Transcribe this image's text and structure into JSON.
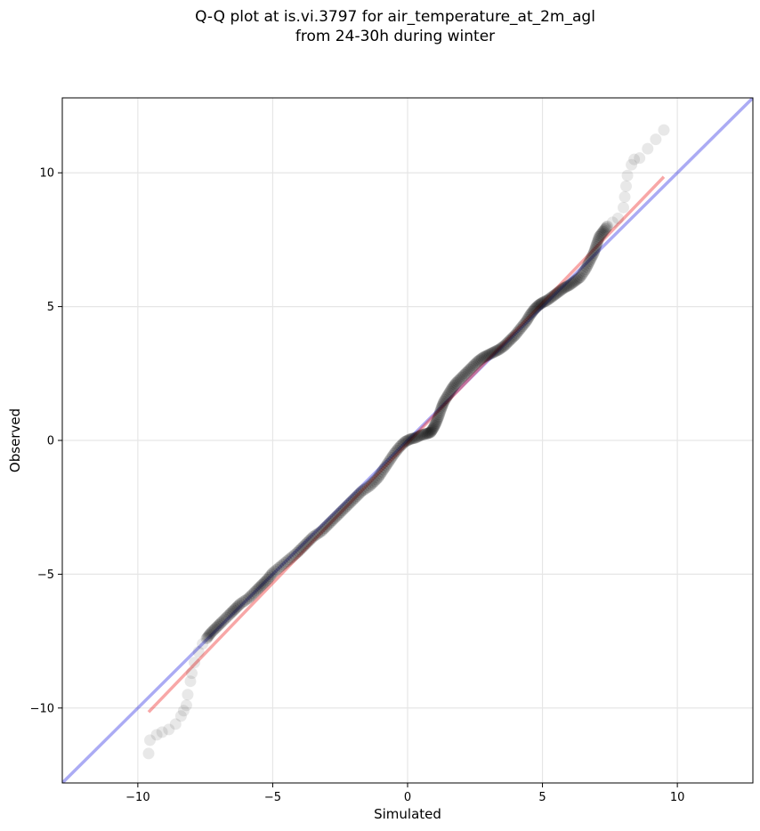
{
  "chart_data": {
    "type": "scatter",
    "title_line1": "Q-Q plot at is.vi.3797 for air_temperature_at_2m_agl",
    "title_line2": "from 24-30h during winter",
    "xlabel": "Simulated",
    "ylabel": "Observed",
    "xlim": [
      -12.8,
      12.8
    ],
    "ylim": [
      -12.8,
      12.8
    ],
    "xticks": [
      -10,
      -5,
      0,
      5,
      10
    ],
    "yticks": [
      -10,
      -5,
      0,
      5,
      10
    ],
    "grid": true,
    "reference_line": {
      "color": "#0000dd",
      "x": [
        -12.8,
        12.8
      ],
      "y": [
        -12.8,
        12.8
      ]
    },
    "fit_line": {
      "color": "#ee2222",
      "x": [
        -9.6,
        9.5
      ],
      "y": [
        -10.15,
        9.85
      ]
    },
    "point_color": "#000000",
    "quantiles": [
      [
        -9.6,
        -11.7
      ],
      [
        -9.55,
        -11.2
      ],
      [
        -9.3,
        -11.0
      ],
      [
        -9.1,
        -10.9
      ],
      [
        -8.85,
        -10.8
      ],
      [
        -8.6,
        -10.6
      ],
      [
        -8.4,
        -10.3
      ],
      [
        -8.3,
        -10.1
      ],
      [
        -8.2,
        -9.9
      ],
      [
        -8.15,
        -9.5
      ],
      [
        -8.05,
        -9.0
      ],
      [
        -8.0,
        -8.7
      ],
      [
        -7.9,
        -8.3
      ],
      [
        -7.75,
        -7.9
      ],
      [
        -7.6,
        -7.6
      ],
      [
        -7.45,
        -7.4
      ],
      [
        -7.3,
        -7.2
      ],
      [
        -7.1,
        -7.0
      ],
      [
        -6.9,
        -6.8
      ],
      [
        -6.6,
        -6.5
      ],
      [
        -6.4,
        -6.3
      ],
      [
        -6.2,
        -6.1
      ],
      [
        -5.9,
        -5.9
      ],
      [
        -5.6,
        -5.6
      ],
      [
        -5.4,
        -5.4
      ],
      [
        -5.2,
        -5.2
      ],
      [
        -5.0,
        -4.95
      ],
      [
        -4.7,
        -4.7
      ],
      [
        -4.4,
        -4.45
      ],
      [
        -4.1,
        -4.2
      ],
      [
        -3.8,
        -3.9
      ],
      [
        -3.5,
        -3.6
      ],
      [
        -3.2,
        -3.4
      ],
      [
        -2.9,
        -3.1
      ],
      [
        -2.6,
        -2.8
      ],
      [
        -2.3,
        -2.5
      ],
      [
        -2.0,
        -2.2
      ],
      [
        -1.7,
        -1.9
      ],
      [
        -1.4,
        -1.7
      ],
      [
        -1.1,
        -1.4
      ],
      [
        -0.9,
        -1.1
      ],
      [
        -0.7,
        -0.8
      ],
      [
        -0.5,
        -0.5
      ],
      [
        -0.3,
        -0.25
      ],
      [
        -0.1,
        -0.05
      ],
      [
        0.1,
        0.05
      ],
      [
        0.3,
        0.1
      ],
      [
        0.5,
        0.2
      ],
      [
        0.7,
        0.25
      ],
      [
        0.85,
        0.3
      ],
      [
        0.95,
        0.45
      ],
      [
        1.05,
        0.65
      ],
      [
        1.15,
        0.9
      ],
      [
        1.25,
        1.2
      ],
      [
        1.35,
        1.45
      ],
      [
        1.5,
        1.7
      ],
      [
        1.65,
        1.95
      ],
      [
        1.8,
        2.15
      ],
      [
        2.0,
        2.35
      ],
      [
        2.2,
        2.55
      ],
      [
        2.4,
        2.75
      ],
      [
        2.6,
        2.95
      ],
      [
        2.8,
        3.1
      ],
      [
        3.0,
        3.2
      ],
      [
        3.2,
        3.3
      ],
      [
        3.4,
        3.4
      ],
      [
        3.6,
        3.55
      ],
      [
        3.8,
        3.75
      ],
      [
        4.0,
        3.95
      ],
      [
        4.2,
        4.2
      ],
      [
        4.4,
        4.45
      ],
      [
        4.55,
        4.7
      ],
      [
        4.7,
        4.9
      ],
      [
        4.85,
        5.05
      ],
      [
        5.0,
        5.15
      ],
      [
        5.2,
        5.25
      ],
      [
        5.4,
        5.4
      ],
      [
        5.6,
        5.55
      ],
      [
        5.8,
        5.7
      ],
      [
        6.0,
        5.8
      ],
      [
        6.2,
        5.95
      ],
      [
        6.4,
        6.1
      ],
      [
        6.6,
        6.4
      ],
      [
        6.75,
        6.7
      ],
      [
        6.9,
        7.0
      ],
      [
        7.0,
        7.3
      ],
      [
        7.1,
        7.6
      ],
      [
        7.25,
        7.8
      ],
      [
        7.4,
        8.0
      ],
      [
        7.6,
        8.15
      ],
      [
        7.8,
        8.3
      ],
      [
        8.0,
        8.7
      ],
      [
        8.05,
        9.1
      ],
      [
        8.1,
        9.5
      ],
      [
        8.15,
        9.9
      ],
      [
        8.3,
        10.3
      ],
      [
        8.4,
        10.5
      ],
      [
        8.6,
        10.55
      ],
      [
        9.5,
        11.6
      ]
    ]
  }
}
